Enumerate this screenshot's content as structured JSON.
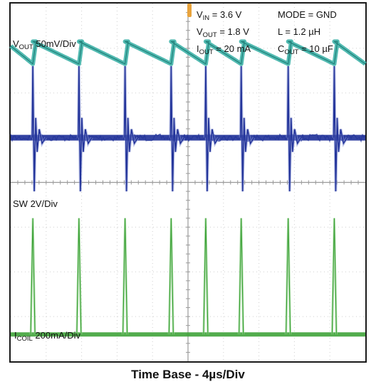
{
  "chart_data": {
    "type": "line",
    "title": "",
    "xlabel": "Time Base - 4µs/Div",
    "x_axis": {
      "divisions": 10,
      "us_per_div": 4,
      "range_us": [
        0,
        40
      ]
    },
    "y_axis": {
      "divisions": 8
    },
    "grid": true,
    "conditions": {
      "vin": {
        "base": "V",
        "sub": "IN",
        "rest": " = 3.6 V"
      },
      "vout": {
        "base": "V",
        "sub": "OUT",
        "rest": " = 1.8 V"
      },
      "iout": {
        "base": "I",
        "sub": "OUT",
        "rest": " = 20 mA"
      },
      "mode": "MODE = GND",
      "inductance": "L = 1.2 µH",
      "cout": {
        "base": "C",
        "sub": "OUT",
        "rest": " = 10 µF"
      }
    },
    "channels": [
      {
        "key": "vout",
        "base": "V",
        "sub": "OUT",
        "rest": " 50mV/Div",
        "color": "#3fb3a8",
        "baseline_div": 6.9,
        "ripple_div": 0.5,
        "pulse_times_us": [
          2.5,
          7.7,
          12.9,
          18.1,
          22.0,
          26.0,
          31.3,
          36.5
        ]
      },
      {
        "key": "sw",
        "base": "SW",
        "sub": "",
        "rest": " 2V/Div",
        "color": "#22339a",
        "baseline_div": 5.0,
        "spike_div": 1.6,
        "pulse_times_us": [
          2.5,
          7.7,
          12.9,
          18.1,
          22.0,
          26.0,
          31.3,
          36.5
        ]
      },
      {
        "key": "icoil",
        "base": "I",
        "sub": "COIL",
        "rest": " 200mA/Div",
        "color": "#3fa33a",
        "baseline_div": 0.6,
        "peak_div": 2.6,
        "pulse_times_us": [
          2.5,
          7.7,
          12.9,
          18.1,
          22.0,
          26.0,
          31.3,
          36.5
        ]
      }
    ],
    "trigger_marker_color": "#e8a33c",
    "grid_color": "#cfcfcf"
  }
}
